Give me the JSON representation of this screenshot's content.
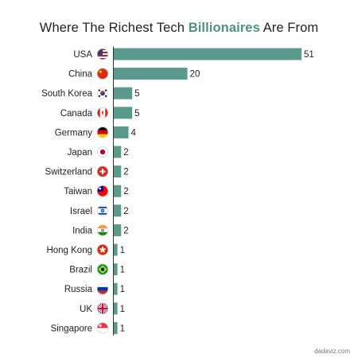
{
  "title": {
    "part1": "Where The Richest Tech ",
    "highlight": "Billionaires",
    "part2": " Are From"
  },
  "watermark": "dadaviz.com",
  "colors": {
    "bar": "#5a9a8c",
    "title_highlight": "#4e9284",
    "axis": "#333333",
    "text": "#222222"
  },
  "chart_data": {
    "type": "bar",
    "orientation": "horizontal",
    "categories": [
      "USA",
      "China",
      "South Korea",
      "Canada",
      "Germany",
      "Japan",
      "Switzerland",
      "Taiwan",
      "Israel",
      "India",
      "Hong Kong",
      "Brazil",
      "Russia",
      "UK",
      "Singapore"
    ],
    "values": [
      51,
      20,
      5,
      5,
      4,
      2,
      2,
      2,
      2,
      2,
      1,
      1,
      1,
      1,
      1
    ],
    "flag_icons": [
      "flag-usa-icon",
      "flag-china-icon",
      "flag-south-korea-icon",
      "flag-canada-icon",
      "flag-germany-icon",
      "flag-japan-icon",
      "flag-switzerland-icon",
      "flag-taiwan-icon",
      "flag-israel-icon",
      "flag-india-icon",
      "flag-hong-kong-icon",
      "flag-brazil-icon",
      "flag-russia-icon",
      "flag-uk-icon",
      "flag-singapore-icon"
    ],
    "xlim": [
      0,
      51
    ],
    "grid": false,
    "data_labels": true
  }
}
